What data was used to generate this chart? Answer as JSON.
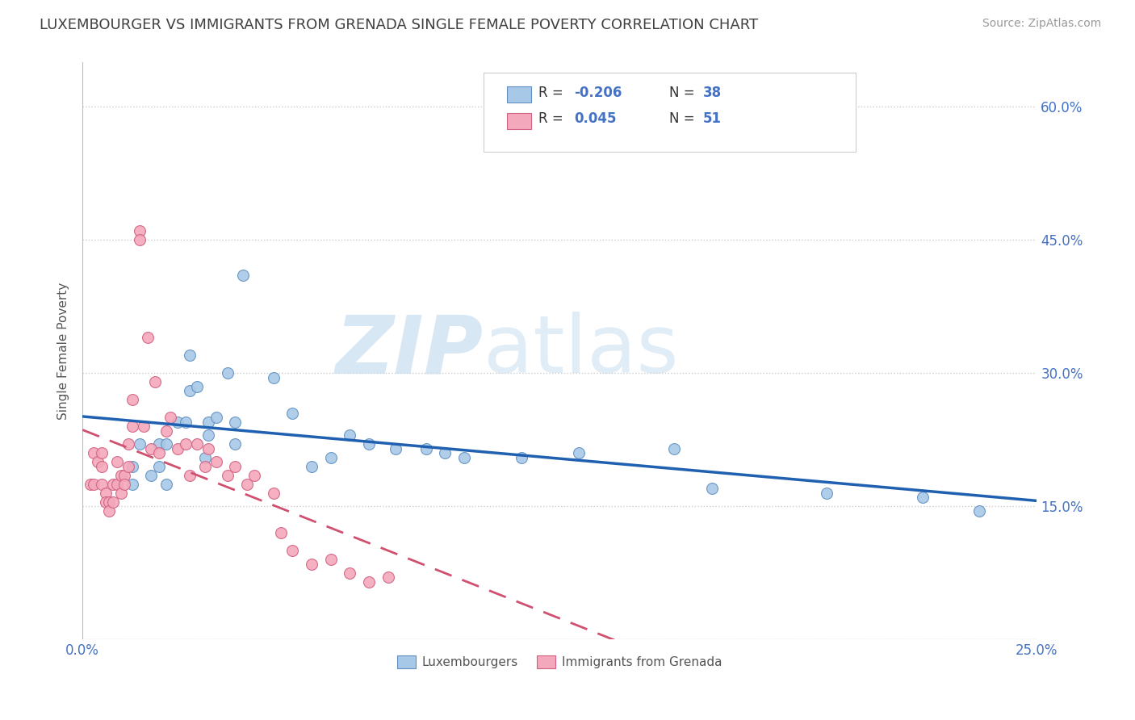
{
  "title": "LUXEMBOURGER VS IMMIGRANTS FROM GRENADA SINGLE FEMALE POVERTY CORRELATION CHART",
  "source": "Source: ZipAtlas.com",
  "ylabel": "Single Female Poverty",
  "xlim": [
    0.0,
    0.25
  ],
  "ylim": [
    0.0,
    0.65
  ],
  "y_ticks_right": [
    0.15,
    0.3,
    0.45,
    0.6
  ],
  "y_tick_labels_right": [
    "15.0%",
    "30.0%",
    "45.0%",
    "60.0%"
  ],
  "blue_color": "#a8c8e8",
  "pink_color": "#f4a8bc",
  "blue_edge_color": "#6090c0",
  "pink_edge_color": "#d06080",
  "blue_line_color": "#2060b0",
  "pink_line_color": "#d05070",
  "legend_R_blue": "-0.206",
  "legend_N_blue": "38",
  "legend_R_pink": "0.045",
  "legend_N_pink": "51",
  "legend_label_blue": "Luxembourgers",
  "legend_label_pink": "Immigrants from Grenada",
  "watermark_zip": "ZIP",
  "watermark_atlas": "atlas",
  "background_color": "#ffffff",
  "grid_color": "#cccccc",
  "title_color": "#404040",
  "axis_color": "#4472c4",
  "blue_x": [
    0.013,
    0.013,
    0.015,
    0.018,
    0.02,
    0.02,
    0.022,
    0.022,
    0.025,
    0.027,
    0.028,
    0.028,
    0.03,
    0.032,
    0.033,
    0.033,
    0.035,
    0.038,
    0.04,
    0.04,
    0.042,
    0.05,
    0.055,
    0.06,
    0.065,
    0.07,
    0.075,
    0.082,
    0.09,
    0.095,
    0.1,
    0.115,
    0.13,
    0.155,
    0.165,
    0.195,
    0.22,
    0.235
  ],
  "blue_y": [
    0.195,
    0.175,
    0.22,
    0.185,
    0.195,
    0.22,
    0.22,
    0.175,
    0.245,
    0.245,
    0.28,
    0.32,
    0.285,
    0.205,
    0.23,
    0.245,
    0.25,
    0.3,
    0.245,
    0.22,
    0.41,
    0.295,
    0.255,
    0.195,
    0.205,
    0.23,
    0.22,
    0.215,
    0.215,
    0.21,
    0.205,
    0.205,
    0.21,
    0.215,
    0.17,
    0.165,
    0.16,
    0.145
  ],
  "pink_x": [
    0.002,
    0.003,
    0.003,
    0.004,
    0.005,
    0.005,
    0.005,
    0.006,
    0.006,
    0.007,
    0.007,
    0.008,
    0.008,
    0.009,
    0.009,
    0.01,
    0.01,
    0.011,
    0.011,
    0.012,
    0.012,
    0.013,
    0.013,
    0.015,
    0.015,
    0.016,
    0.017,
    0.018,
    0.019,
    0.02,
    0.022,
    0.023,
    0.025,
    0.027,
    0.028,
    0.03,
    0.032,
    0.033,
    0.035,
    0.038,
    0.04,
    0.043,
    0.045,
    0.05,
    0.052,
    0.055,
    0.06,
    0.065,
    0.07,
    0.075,
    0.08
  ],
  "pink_y": [
    0.175,
    0.21,
    0.175,
    0.2,
    0.21,
    0.195,
    0.175,
    0.165,
    0.155,
    0.155,
    0.145,
    0.155,
    0.175,
    0.2,
    0.175,
    0.165,
    0.185,
    0.185,
    0.175,
    0.195,
    0.22,
    0.24,
    0.27,
    0.46,
    0.45,
    0.24,
    0.34,
    0.215,
    0.29,
    0.21,
    0.235,
    0.25,
    0.215,
    0.22,
    0.185,
    0.22,
    0.195,
    0.215,
    0.2,
    0.185,
    0.195,
    0.175,
    0.185,
    0.165,
    0.12,
    0.1,
    0.085,
    0.09,
    0.075,
    0.065,
    0.07
  ]
}
